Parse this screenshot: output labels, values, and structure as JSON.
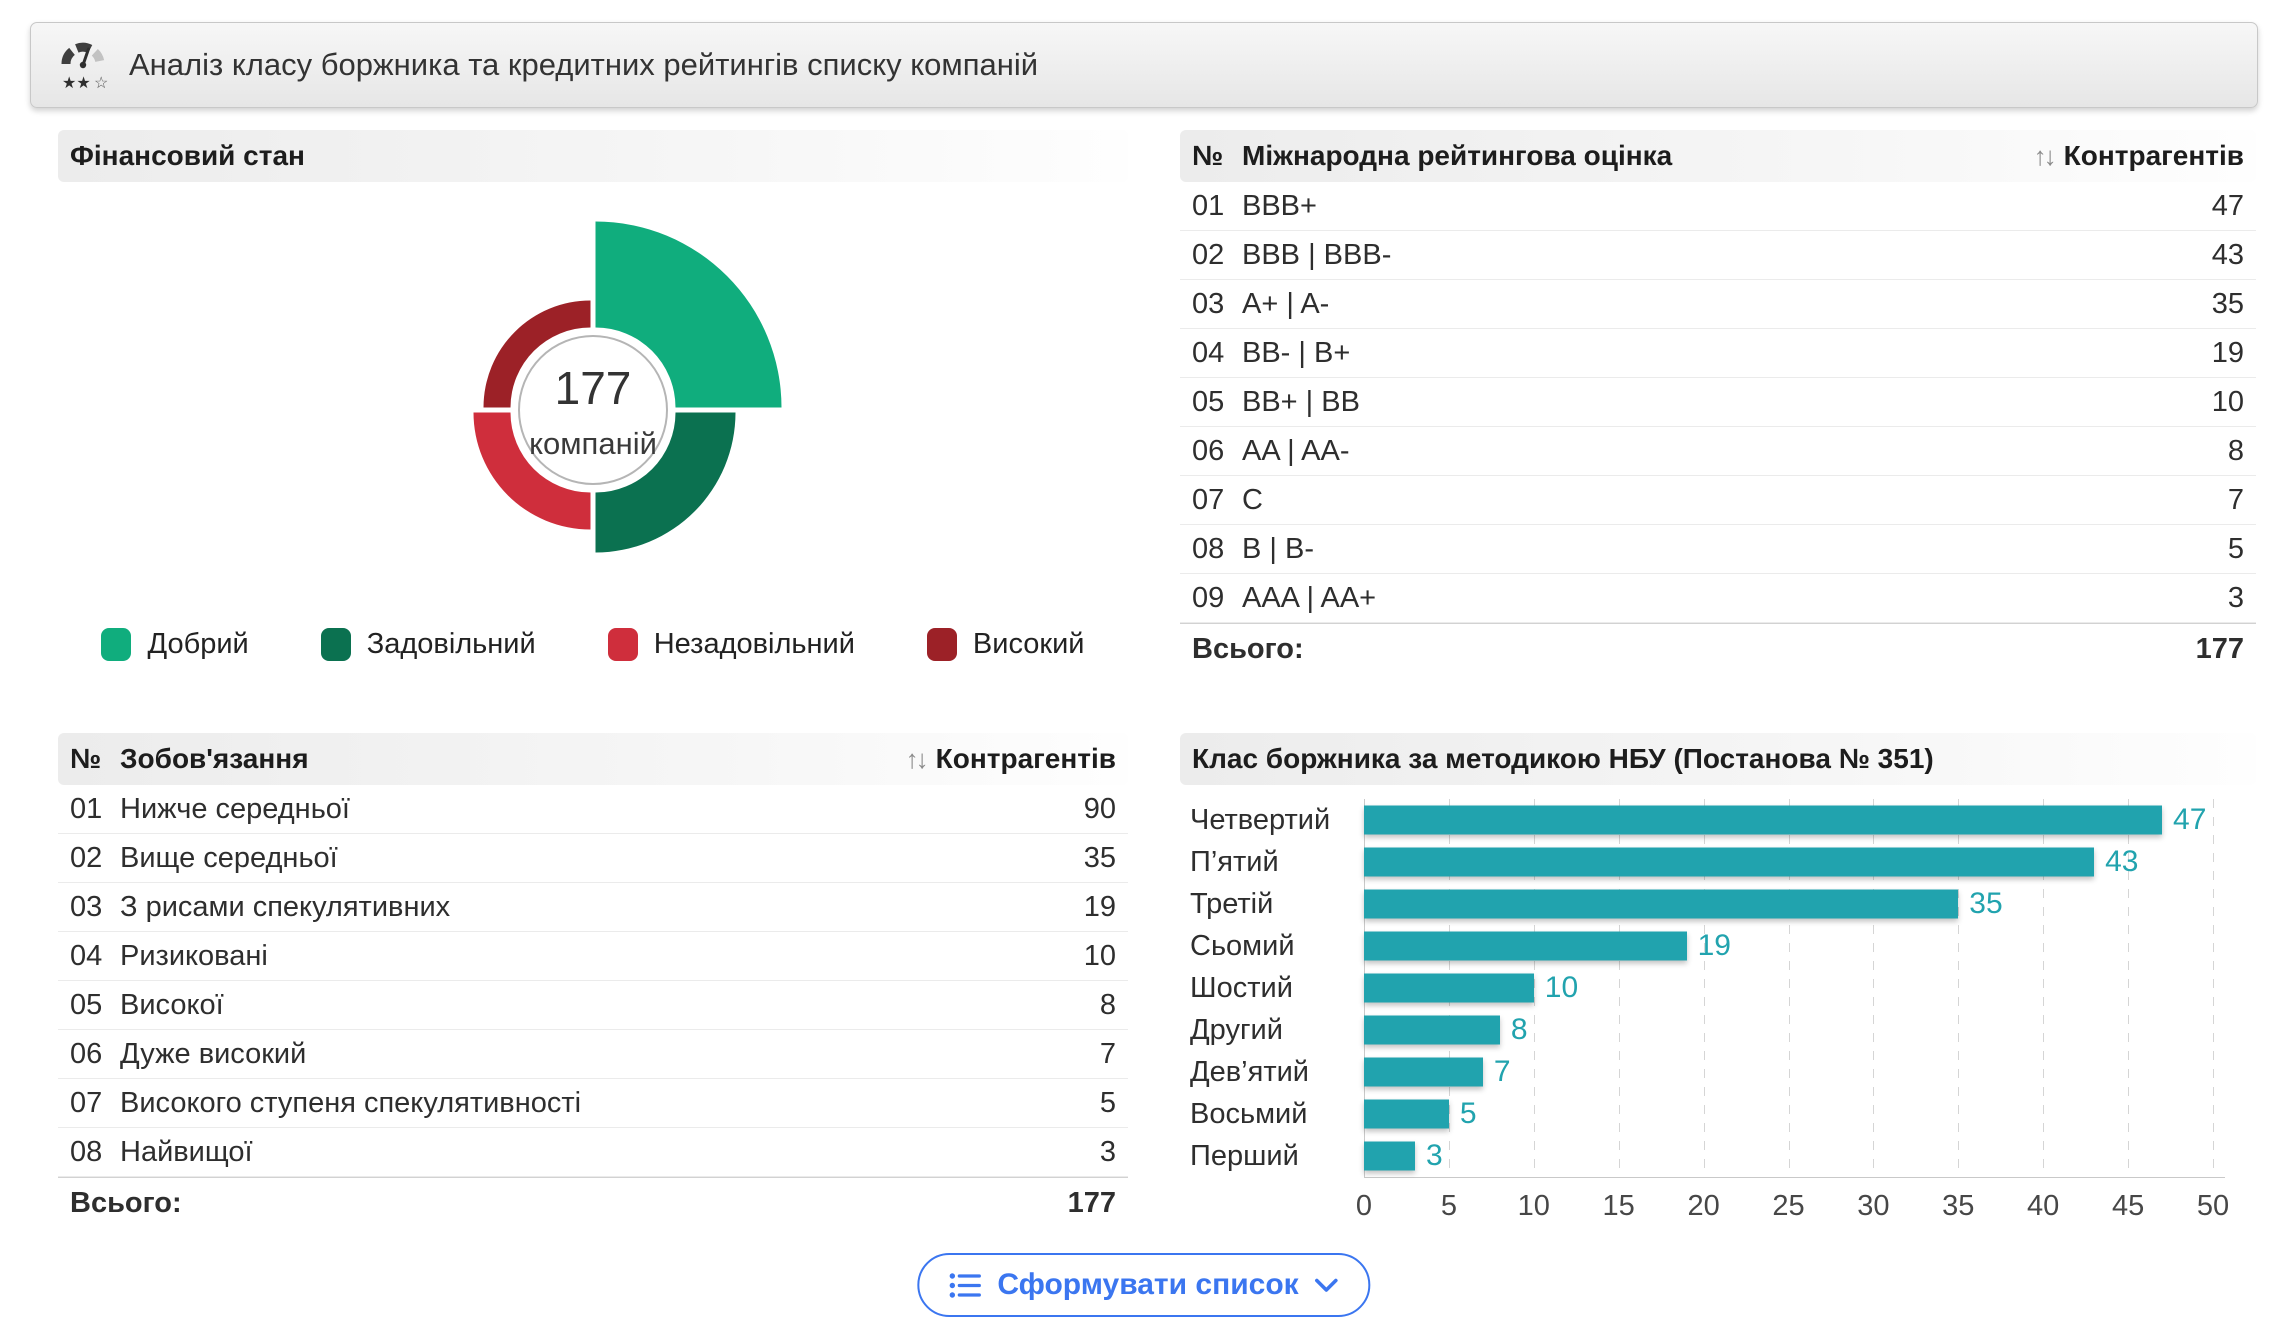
{
  "header": {
    "title": "Аналіз класу боржника та кредитних рейтингів списку компаній",
    "icon": "gauge-rating-icon"
  },
  "icons": {
    "sort": "↑↓"
  },
  "rating_table": {
    "col_num": "№",
    "title": "Міжнародна рейтингова оцінка",
    "col_count": "Контрагентів",
    "rows": [
      {
        "num": "01",
        "label": "BBB+",
        "count": "47"
      },
      {
        "num": "02",
        "label": "BBB | BBB-",
        "count": "43"
      },
      {
        "num": "03",
        "label": "A+ | A-",
        "count": "35"
      },
      {
        "num": "04",
        "label": "BB- | B+",
        "count": "19"
      },
      {
        "num": "05",
        "label": "BB+ | BB",
        "count": "10"
      },
      {
        "num": "06",
        "label": "AA | AA-",
        "count": "8"
      },
      {
        "num": "07",
        "label": "C",
        "count": "7"
      },
      {
        "num": "08",
        "label": "B | B-",
        "count": "5"
      },
      {
        "num": "09",
        "label": "AAA | AA+",
        "count": "3"
      }
    ],
    "total_label": "Всього:",
    "total_value": "177"
  },
  "obligation_table": {
    "col_num": "№",
    "title": "Зобов'язання",
    "col_count": "Контрагентів",
    "rows": [
      {
        "num": "01",
        "label": "Нижче середньої",
        "count": "90"
      },
      {
        "num": "02",
        "label": "Вище середньої",
        "count": "35"
      },
      {
        "num": "03",
        "label": "З рисами спекулятивних",
        "count": "19"
      },
      {
        "num": "04",
        "label": "Ризиковані",
        "count": "10"
      },
      {
        "num": "05",
        "label": "Високої",
        "count": "8"
      },
      {
        "num": "06",
        "label": "Дуже високий",
        "count": "7"
      },
      {
        "num": "07",
        "label": "Високого ступеня спекулятивності",
        "count": "5"
      },
      {
        "num": "08",
        "label": "Найвищої",
        "count": "3"
      }
    ],
    "total_label": "Всього:",
    "total_value": "177"
  },
  "footer": {
    "button_label": "Сформувати список",
    "accent_color": "#3b76f0"
  },
  "chart_data": [
    {
      "type": "donut",
      "title": "Фінансовий стан",
      "center_value": "177",
      "center_unit": "компаній",
      "total": 177,
      "values_labeled": false,
      "inner_radius_px": 80,
      "legend_position": "bottom",
      "segments": [
        {
          "label": "Добрий",
          "color": "#10ad7d",
          "quadrant": "tr",
          "outer_radius_px": 186
        },
        {
          "label": "Задовільний",
          "color": "#0b7150",
          "quadrant": "br",
          "outer_radius_px": 140
        },
        {
          "label": "Незадовільний",
          "color": "#cf2e3c",
          "quadrant": "bl",
          "outer_radius_px": 117
        },
        {
          "label": "Високий",
          "color": "#9c2127",
          "quadrant": "tl",
          "outer_radius_px": 107
        }
      ]
    },
    {
      "type": "bar",
      "orientation": "horizontal",
      "title": "Клас боржника за методикою НБУ (Постанова № 351)",
      "categories": [
        "Четвертий",
        "П’ятий",
        "Третій",
        "Сьомий",
        "Шостий",
        "Другий",
        "Дев’ятий",
        "Восьмий",
        "Перший"
      ],
      "values": [
        47,
        43,
        35,
        19,
        10,
        8,
        7,
        5,
        3
      ],
      "xlim": [
        0,
        50
      ],
      "xticks": [
        0,
        5,
        10,
        15,
        20,
        25,
        30,
        35,
        40,
        45,
        50
      ],
      "bar_color": "#21a3ae",
      "value_label_color": "#21a3ae",
      "grid": "dashed-vertical"
    }
  ]
}
